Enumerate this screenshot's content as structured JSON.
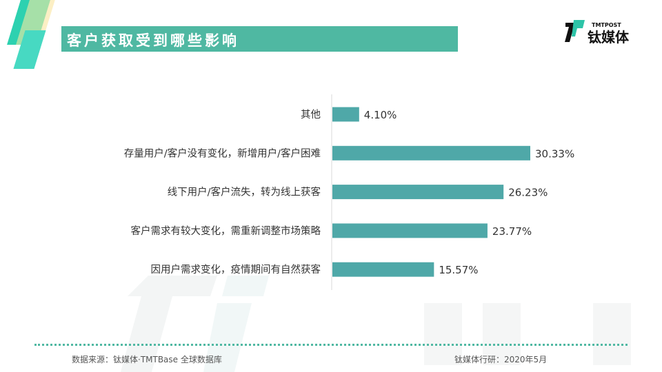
{
  "header": {
    "title": "客户获取受到哪些影响"
  },
  "logo": {
    "text_en": "TMTPOST",
    "text_cn": "钛媒体"
  },
  "watermark": {
    "en": "TMTPOST",
    "cn": "钛媒体"
  },
  "footer": {
    "source": "数据来源：钛媒体·TMTBase 全球数据库",
    "date": "钛媒体行研：2020年5月"
  },
  "colors": {
    "bar": "#4fa8a8",
    "accent": "#4fb8a2"
  },
  "chart_data": {
    "type": "bar",
    "orientation": "horizontal",
    "categories": [
      "其他",
      "存量用户/客户没有变化，新增用户/客户困难",
      "线下用户/客户流失，转为线上获客",
      "客户需求有较大变化，需重新调整市场策略",
      "因用户需求变化，疫情期间有自然获客"
    ],
    "values": [
      4.1,
      30.33,
      26.23,
      23.77,
      15.57
    ],
    "labels": [
      "4.10%",
      "30.33%",
      "26.23%",
      "23.77%",
      "15.57%"
    ],
    "title": "客户获取受到哪些影响",
    "xlim": [
      0,
      30.33
    ],
    "grid": false,
    "legend": "none"
  }
}
